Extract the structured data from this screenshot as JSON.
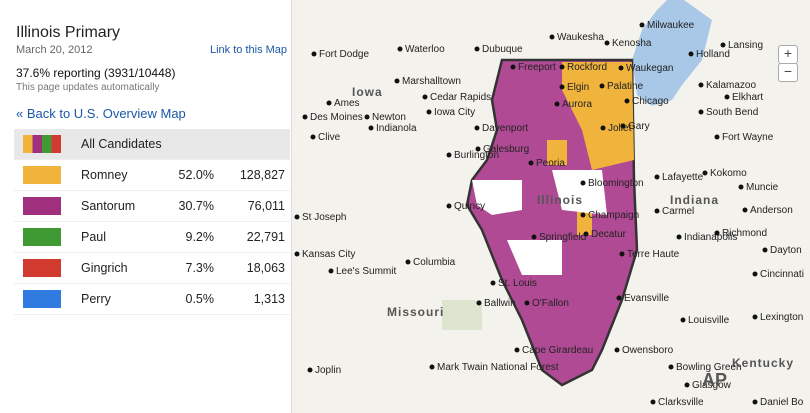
{
  "panel": {
    "title": "Illinois Primary",
    "date": "March 20, 2012",
    "link_label": "Link to this Map",
    "reporting": "37.6% reporting (3931/10448)",
    "auto_update": "This page updates automatically",
    "back_label": "« Back to U.S. Overview Map",
    "all_label": "All Candidates",
    "candidates": [
      {
        "name": "Romney",
        "pct": "52.0%",
        "votes": "128,827",
        "color": "#f0b43c"
      },
      {
        "name": "Santorum",
        "pct": "30.7%",
        "votes": "76,011",
        "color": "#a0307e"
      },
      {
        "name": "Paul",
        "pct": "9.2%",
        "votes": "22,791",
        "color": "#3f9a34"
      },
      {
        "name": "Gingrich",
        "pct": "7.3%",
        "votes": "18,063",
        "color": "#d13a2f"
      },
      {
        "name": "Perry",
        "pct": "0.5%",
        "votes": "1,313",
        "color": "#2f7be0"
      }
    ]
  },
  "map": {
    "zoom_in": "+",
    "zoom_out": "−",
    "states": [
      "Iowa",
      "Illinois",
      "Indiana",
      "Missouri",
      "Kentucky"
    ],
    "cities": [
      "Milwaukee",
      "Waukesha",
      "Kenosha",
      "Lansing",
      "Holland",
      "Dubuque",
      "Waterloo",
      "Fort Dodge",
      "Marshalltown",
      "Cedar Rapids",
      "Ames",
      "Iowa City",
      "Des Moines",
      "Newton",
      "Indianola",
      "Davenport",
      "Clive",
      "Burlington",
      "Galesburg",
      "Peoria",
      "Freeport",
      "Rockford",
      "Elgin",
      "Palatine",
      "Waukegan",
      "Chicago",
      "Aurora",
      "Joliet",
      "Gary",
      "Kalamazoo",
      "Elkhart",
      "South Bend",
      "Fort Wayne",
      "Bloomington",
      "Kokomo",
      "Lafayette",
      "Muncie",
      "Indianapolis",
      "Richmond",
      "Carmel",
      "Anderson",
      "Quincy",
      "Springfield",
      "Decatur",
      "Champaign",
      "Terre Haute",
      "St Joseph",
      "Kansas City",
      "Lee's Summit",
      "Columbia",
      "St. Louis",
      "Ballwin",
      "O'Fallon",
      "Evansville",
      "Owensboro",
      "Louisville",
      "Lexington",
      "Cincinnati",
      "Dayton",
      "Cape Girardeau",
      "Joplin",
      "Bowling Green",
      "Glasgow",
      "Clarksville",
      "Daniel Bo",
      "Mark Twain National Forest"
    ],
    "watermark": "AP"
  }
}
